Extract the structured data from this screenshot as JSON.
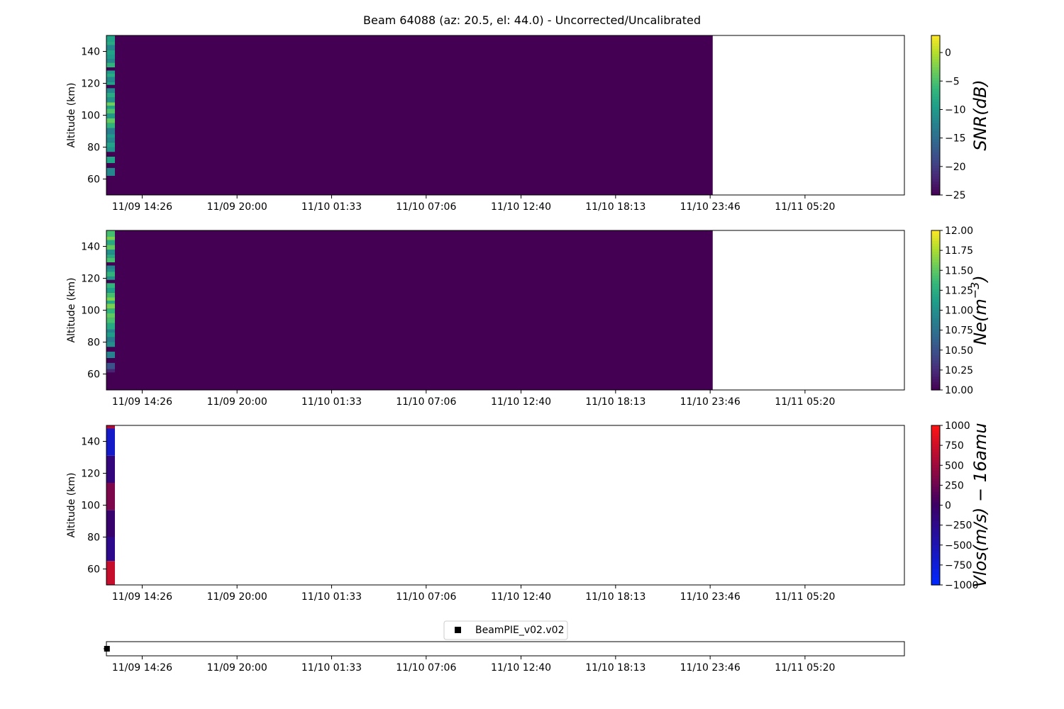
{
  "title": "Beam 64088 (az: 20.5, el: 44.0) - Uncorrected/Uncalibrated",
  "x_tick_labels": [
    "11/09 14:26",
    "11/09 20:00",
    "11/10 01:33",
    "11/10 07:06",
    "11/10 12:40",
    "11/10 18:13",
    "11/10 23:46",
    "11/11 05:20"
  ],
  "chart_data": [
    {
      "type": "heatmap",
      "panel": "snr",
      "ylabel": "Altitude (km)",
      "ylim": [
        50,
        150
      ],
      "y_ticks": [
        60,
        80,
        100,
        120,
        140
      ],
      "colorbar": {
        "label": "SNR(dB)",
        "colormap": "viridis",
        "vmin": -25,
        "vmax": 3,
        "ticks": [
          0,
          -5,
          -10,
          -15,
          -20,
          -25
        ],
        "tick_labels": [
          "0",
          "−5",
          "−10",
          "−15",
          "−20",
          "−25"
        ]
      },
      "x_range": [
        "11/09 12:20",
        "11/11 11:10"
      ],
      "data_end": "11/10 23:55",
      "fill_value": -25,
      "first_column": {
        "x_span": [
          "11/09 12:20",
          "11/09 12:50"
        ],
        "alt_bins": [
          [
            62,
            67,
            -12
          ],
          [
            67,
            70,
            -25
          ],
          [
            70,
            74,
            -9
          ],
          [
            74,
            77,
            -25
          ],
          [
            77,
            80,
            -11
          ],
          [
            80,
            83,
            -9
          ],
          [
            83,
            86,
            -12
          ],
          [
            86,
            88,
            -10
          ],
          [
            88,
            92,
            -13
          ],
          [
            92,
            95,
            -7
          ],
          [
            95,
            98,
            -4
          ],
          [
            98,
            101,
            -10
          ],
          [
            101,
            104,
            -5
          ],
          [
            104,
            106,
            -9
          ],
          [
            106,
            108,
            -3
          ],
          [
            108,
            111,
            -11
          ],
          [
            111,
            114,
            -8
          ],
          [
            114,
            117,
            -12
          ],
          [
            117,
            119,
            -25
          ],
          [
            119,
            121,
            -9
          ],
          [
            121,
            124,
            -12
          ],
          [
            124,
            126,
            -8
          ],
          [
            126,
            128,
            -10
          ],
          [
            128,
            130,
            -25
          ],
          [
            130,
            133,
            -7
          ],
          [
            133,
            135,
            -12
          ],
          [
            135,
            138,
            -10
          ],
          [
            138,
            141,
            -9
          ],
          [
            141,
            144,
            -12
          ],
          [
            144,
            146,
            -8
          ],
          [
            146,
            150,
            -9
          ]
        ]
      }
    },
    {
      "type": "heatmap",
      "panel": "ne",
      "ylabel": "Altitude (km)",
      "ylim": [
        50,
        150
      ],
      "y_ticks": [
        60,
        80,
        100,
        120,
        140
      ],
      "colorbar": {
        "label": "Ne(m^-3)",
        "colormap": "viridis",
        "vmin": 10.0,
        "vmax": 12.0,
        "ticks": [
          12.0,
          11.75,
          11.5,
          11.25,
          11.0,
          10.75,
          10.5,
          10.25,
          10.0
        ],
        "tick_labels": [
          "12.00",
          "11.75",
          "11.50",
          "11.25",
          "11.00",
          "10.75",
          "10.50",
          "10.25",
          "10.00"
        ]
      },
      "x_range": [
        "11/09 12:20",
        "11/11 11:10"
      ],
      "data_end": "11/10 23:55",
      "fill_value": 10.0,
      "first_column": {
        "x_span": [
          "11/09 12:20",
          "11/09 12:50"
        ],
        "alt_bins": [
          [
            61,
            63,
            10.2
          ],
          [
            63,
            67,
            10.5
          ],
          [
            67,
            70,
            10.0
          ],
          [
            70,
            74,
            10.9
          ],
          [
            74,
            77,
            10.0
          ],
          [
            77,
            80,
            11.0
          ],
          [
            80,
            83,
            10.8
          ],
          [
            83,
            86,
            11.1
          ],
          [
            86,
            88,
            10.9
          ],
          [
            88,
            92,
            11.2
          ],
          [
            92,
            95,
            11.4
          ],
          [
            95,
            98,
            11.5
          ],
          [
            98,
            101,
            11.3
          ],
          [
            101,
            104,
            11.6
          ],
          [
            104,
            106,
            11.2
          ],
          [
            106,
            108,
            11.6
          ],
          [
            108,
            111,
            11.4
          ],
          [
            111,
            114,
            11.1
          ],
          [
            114,
            117,
            11.3
          ],
          [
            117,
            119,
            10.0
          ],
          [
            119,
            121,
            11.0
          ],
          [
            121,
            124,
            11.3
          ],
          [
            124,
            126,
            11.0
          ],
          [
            126,
            128,
            10.9
          ],
          [
            128,
            130,
            10.0
          ],
          [
            130,
            133,
            11.4
          ],
          [
            133,
            135,
            11.2
          ],
          [
            135,
            138,
            11.0
          ],
          [
            138,
            141,
            11.5
          ],
          [
            141,
            144,
            11.2
          ],
          [
            144,
            146,
            11.6
          ],
          [
            146,
            150,
            11.4
          ]
        ]
      }
    },
    {
      "type": "heatmap",
      "panel": "vlos",
      "ylabel": "Altitude (km)",
      "ylim": [
        50,
        150
      ],
      "y_ticks": [
        60,
        80,
        100,
        120,
        140
      ],
      "colorbar": {
        "label": "Vlos(m/s) − 16amu",
        "colormap": "bwr-dark",
        "vmin": -1000,
        "vmax": 1000,
        "ticks": [
          1000,
          750,
          500,
          250,
          0,
          -250,
          -500,
          -750,
          -1000
        ],
        "tick_labels": [
          "1000",
          "750",
          "500",
          "250",
          "0",
          "−250",
          "−500",
          "−750",
          "−1000"
        ]
      },
      "x_range": [
        "11/09 12:20",
        "11/11 11:10"
      ],
      "first_column": {
        "x_span": [
          "11/09 12:20",
          "11/09 12:50"
        ],
        "alt_bins": [
          [
            50,
            65,
            700
          ],
          [
            65,
            80,
            -250
          ],
          [
            80,
            97,
            -60
          ],
          [
            97,
            114,
            330
          ],
          [
            114,
            131,
            -150
          ],
          [
            131,
            148,
            -650
          ],
          [
            148,
            150,
            600
          ]
        ]
      }
    },
    {
      "type": "scatter",
      "panel": "beam-marker",
      "legend": [
        "BeamPIE_v02.v02"
      ],
      "legend_position": "top-center",
      "x_range": [
        "11/09 12:20",
        "11/11 11:10"
      ],
      "points": [
        {
          "x": "11/09 12:22",
          "y": 0
        }
      ]
    }
  ]
}
